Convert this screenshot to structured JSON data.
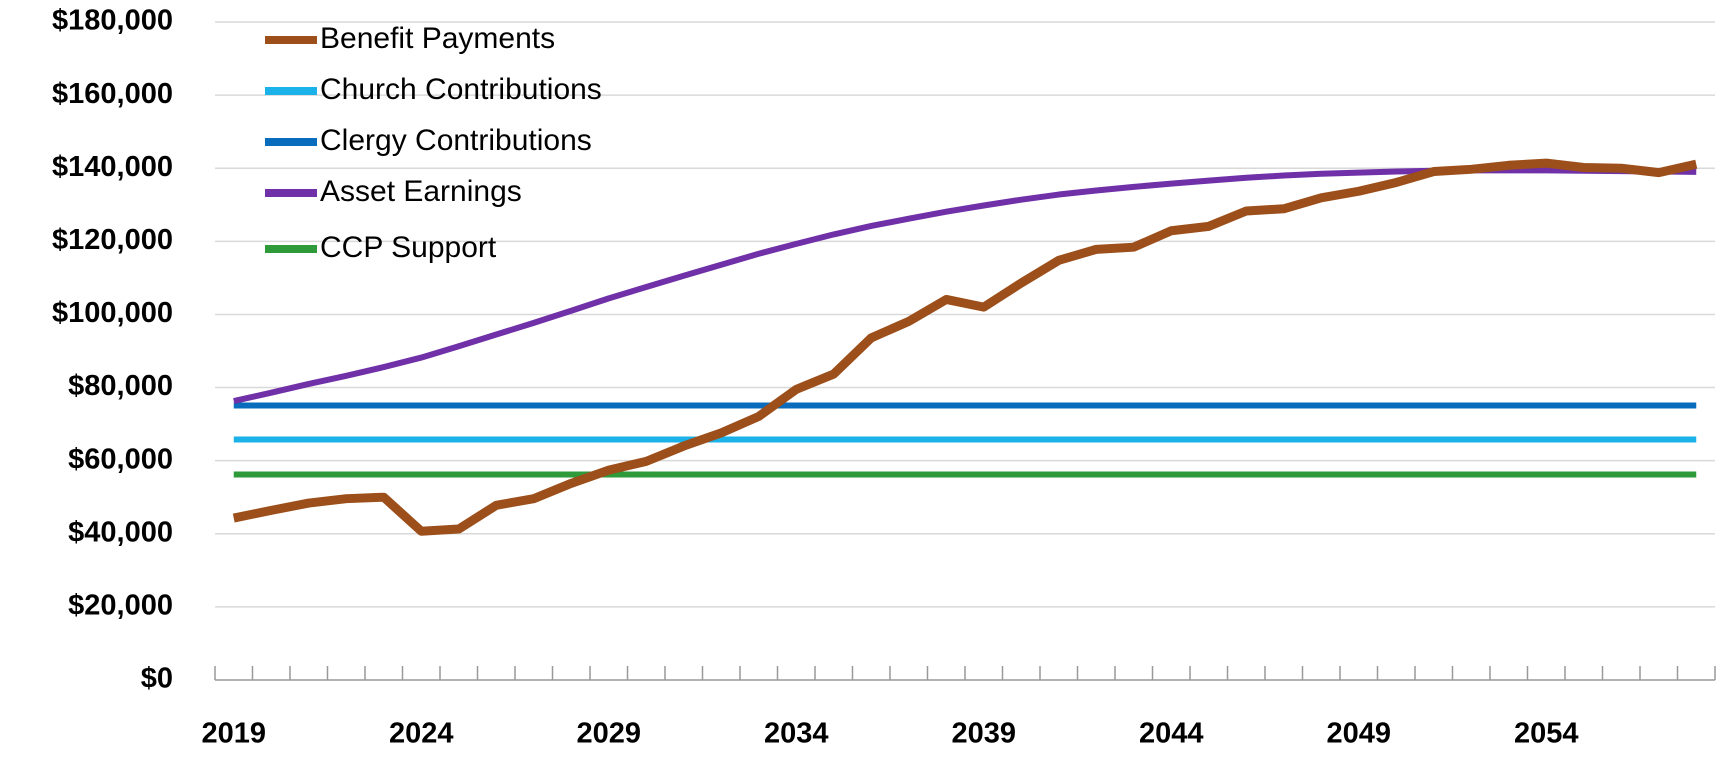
{
  "chart_data": {
    "type": "line",
    "categories": [
      "2019",
      null,
      null,
      null,
      null,
      "2024",
      null,
      null,
      null,
      null,
      "2029",
      null,
      null,
      null,
      null,
      "2034",
      null,
      null,
      null,
      null,
      "2039",
      null,
      null,
      null,
      null,
      "2044",
      null,
      null,
      null,
      null,
      "2049",
      null,
      null,
      null,
      null,
      "2054",
      null,
      null,
      null,
      null
    ],
    "series": [
      {
        "name": "Benefit Payments",
        "color": "#9c4f1a",
        "values": [
          44300,
          46400,
          48400,
          49600,
          50000,
          40700,
          41300,
          47800,
          49600,
          53800,
          57400,
          59800,
          64000,
          67600,
          72100,
          79500,
          83700,
          93600,
          98100,
          104100,
          102000,
          108600,
          114800,
          117800,
          118400,
          122900,
          124100,
          128300,
          128900,
          131900,
          133700,
          136100,
          139100,
          139700,
          140800,
          141400,
          140200,
          140000,
          138800,
          141100
        ]
      },
      {
        "name": "Church Contributions",
        "color": "#1ab2e8",
        "values": [
          65800,
          65800,
          65800,
          65800,
          65800,
          65800,
          65800,
          65800,
          65800,
          65800,
          65800,
          65800,
          65800,
          65800,
          65800,
          65800,
          65800,
          65800,
          65800,
          65800,
          65800,
          65800,
          65800,
          65800,
          65800,
          65800,
          65800,
          65800,
          65800,
          65800,
          65800,
          65800,
          65800,
          65800,
          65800,
          65800,
          65800,
          65800,
          65800,
          65800
        ]
      },
      {
        "name": "Clergy Contributions",
        "color": "#0a6cbd",
        "values": [
          75100,
          75100,
          75100,
          75100,
          75100,
          75100,
          75100,
          75100,
          75100,
          75100,
          75100,
          75100,
          75100,
          75100,
          75100,
          75100,
          75100,
          75100,
          75100,
          75100,
          75100,
          75100,
          75100,
          75100,
          75100,
          75100,
          75100,
          75100,
          75100,
          75100,
          75100,
          75100,
          75100,
          75100,
          75100,
          75100,
          75100,
          75100,
          75100,
          75100
        ]
      },
      {
        "name": "Asset Earnings",
        "color": "#7030a8",
        "values": [
          76300,
          78600,
          81000,
          83200,
          85600,
          88200,
          91300,
          94500,
          97700,
          101000,
          104400,
          107500,
          110600,
          113600,
          116600,
          119300,
          121900,
          124200,
          126200,
          128100,
          129800,
          131400,
          132800,
          133900,
          134900,
          135800,
          136600,
          137400,
          138000,
          138500,
          138800,
          139100,
          139300,
          139400,
          139400,
          139400,
          139300,
          139200,
          139100,
          139000
        ]
      },
      {
        "name": "CCP Support",
        "color": "#2e9a3a",
        "values": [
          56200,
          56200,
          56200,
          56200,
          56200,
          56200,
          56200,
          56200,
          56200,
          56200,
          56200,
          56200,
          56200,
          56200,
          56200,
          56200,
          56200,
          56200,
          56200,
          56200,
          56200,
          56200,
          56200,
          56200,
          56200,
          56200,
          56200,
          56200,
          56200,
          56200,
          56200,
          56200,
          56200,
          56200,
          56200,
          56200,
          56200,
          56200,
          56200,
          56200
        ]
      }
    ],
    "ylim": [
      0,
      180000
    ],
    "yticks": [
      {
        "value": 0,
        "label": "$0"
      },
      {
        "value": 20000,
        "label": "$20,000"
      },
      {
        "value": 40000,
        "label": "$40,000"
      },
      {
        "value": 60000,
        "label": "$60,000"
      },
      {
        "value": 80000,
        "label": "$80,000"
      },
      {
        "value": 100000,
        "label": "$100,000"
      },
      {
        "value": 120000,
        "label": "$120,000"
      },
      {
        "value": 140000,
        "label": "$140,000"
      },
      {
        "value": 160000,
        "label": "$160,000"
      },
      {
        "value": 180000,
        "label": "$180,000"
      }
    ],
    "grid": true,
    "legend": "upper left"
  }
}
